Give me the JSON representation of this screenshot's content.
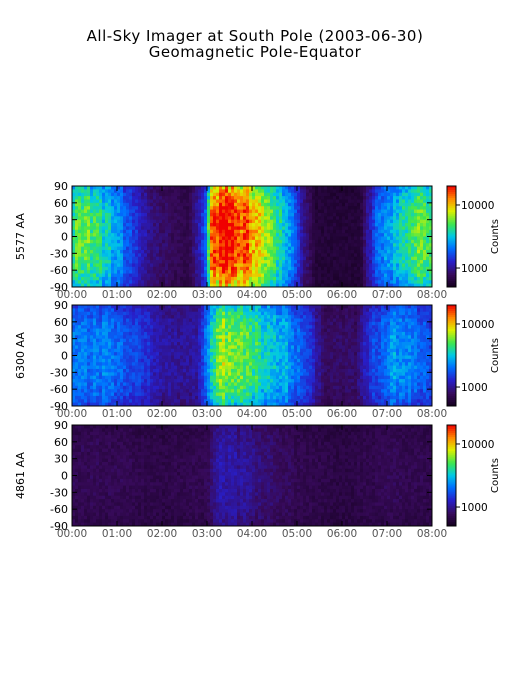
{
  "figure": {
    "title": "All-Sky Imager at South Pole (2003-06-30)",
    "subtitle": "Geomagnetic Pole-Equator"
  },
  "chart_data": [
    {
      "type": "heatmap",
      "ylabel": "5577 AA",
      "xlabel": "",
      "x_ticks": [
        "00:00",
        "01:00",
        "02:00",
        "03:00",
        "04:00",
        "05:00",
        "06:00",
        "07:00",
        "08:00"
      ],
      "xlim": [
        0,
        8
      ],
      "y_ticks": [
        "90",
        "60",
        "30",
        "0",
        "-30",
        "-60",
        "-90"
      ],
      "ylim": [
        -90,
        90
      ],
      "colorbar": {
        "label": "Counts",
        "ticks": [
          "10000",
          "1000"
        ],
        "scale": "log",
        "range": [
          500,
          20000
        ]
      },
      "colormap": "rainbow",
      "activity": [
        {
          "t": 0.0,
          "level": 0.55
        },
        {
          "t": 0.4,
          "level": 0.6
        },
        {
          "t": 0.9,
          "level": 0.45
        },
        {
          "t": 1.3,
          "level": 0.3
        },
        {
          "t": 1.8,
          "level": 0.15
        },
        {
          "t": 2.6,
          "level": 0.08
        },
        {
          "t": 2.95,
          "level": 0.3
        },
        {
          "t": 3.1,
          "level": 0.85
        },
        {
          "t": 3.5,
          "level": 0.95
        },
        {
          "t": 3.9,
          "level": 0.85
        },
        {
          "t": 4.4,
          "level": 0.6
        },
        {
          "t": 4.8,
          "level": 0.45
        },
        {
          "t": 5.1,
          "level": 0.2
        },
        {
          "t": 5.4,
          "level": 0.05
        },
        {
          "t": 6.4,
          "level": 0.05
        },
        {
          "t": 6.8,
          "level": 0.35
        },
        {
          "t": 7.3,
          "level": 0.5
        },
        {
          "t": 7.8,
          "level": 0.6
        },
        {
          "t": 8.0,
          "level": 0.55
        }
      ]
    },
    {
      "type": "heatmap",
      "ylabel": "6300 AA",
      "xlabel": "",
      "x_ticks": [
        "00:00",
        "01:00",
        "02:00",
        "03:00",
        "04:00",
        "05:00",
        "06:00",
        "07:00",
        "08:00"
      ],
      "xlim": [
        0,
        8
      ],
      "y_ticks": [
        "90",
        "60",
        "30",
        "0",
        "-30",
        "-60",
        "-90"
      ],
      "ylim": [
        -90,
        90
      ],
      "colorbar": {
        "label": "Counts",
        "ticks": [
          "10000",
          "1000"
        ],
        "scale": "log",
        "range": [
          500,
          20000
        ]
      },
      "colormap": "rainbow",
      "activity": [
        {
          "t": 0.0,
          "level": 0.35
        },
        {
          "t": 0.5,
          "level": 0.38
        },
        {
          "t": 1.0,
          "level": 0.35
        },
        {
          "t": 1.5,
          "level": 0.28
        },
        {
          "t": 2.0,
          "level": 0.2
        },
        {
          "t": 2.8,
          "level": 0.18
        },
        {
          "t": 3.0,
          "level": 0.4
        },
        {
          "t": 3.3,
          "level": 0.65
        },
        {
          "t": 3.8,
          "level": 0.6
        },
        {
          "t": 4.3,
          "level": 0.5
        },
        {
          "t": 4.8,
          "level": 0.42
        },
        {
          "t": 5.2,
          "level": 0.3
        },
        {
          "t": 5.6,
          "level": 0.12
        },
        {
          "t": 6.3,
          "level": 0.12
        },
        {
          "t": 6.7,
          "level": 0.3
        },
        {
          "t": 7.2,
          "level": 0.42
        },
        {
          "t": 7.7,
          "level": 0.35
        },
        {
          "t": 8.0,
          "level": 0.3
        }
      ]
    },
    {
      "type": "heatmap",
      "ylabel": "4861 AA",
      "xlabel": "",
      "x_ticks": [
        "00:00",
        "01:00",
        "02:00",
        "03:00",
        "04:00",
        "05:00",
        "06:00",
        "07:00",
        "08:00"
      ],
      "xlim": [
        0,
        8
      ],
      "y_ticks": [
        "90",
        "60",
        "30",
        "0",
        "-30",
        "-60",
        "-90"
      ],
      "ylim": [
        -90,
        90
      ],
      "colorbar": {
        "label": "Counts",
        "ticks": [
          "10000",
          "1000"
        ],
        "scale": "log",
        "range": [
          500,
          20000
        ]
      },
      "colormap": "rainbow",
      "activity": [
        {
          "t": 0.0,
          "level": 0.1
        },
        {
          "t": 1.0,
          "level": 0.1
        },
        {
          "t": 2.0,
          "level": 0.08
        },
        {
          "t": 3.0,
          "level": 0.1
        },
        {
          "t": 3.3,
          "level": 0.2
        },
        {
          "t": 3.8,
          "level": 0.18
        },
        {
          "t": 4.5,
          "level": 0.12
        },
        {
          "t": 5.0,
          "level": 0.1
        },
        {
          "t": 6.0,
          "level": 0.07
        },
        {
          "t": 7.0,
          "level": 0.1
        },
        {
          "t": 8.0,
          "level": 0.09
        }
      ]
    }
  ]
}
